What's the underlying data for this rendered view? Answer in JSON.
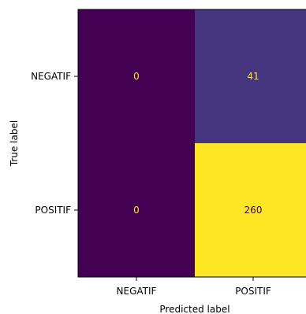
{
  "chart_data": {
    "type": "heatmap",
    "title": "",
    "xlabel": "Predicted label",
    "ylabel": "True label",
    "x_categories": [
      "NEGATIF",
      "POSITIF"
    ],
    "y_categories": [
      "NEGATIF",
      "POSITIF"
    ],
    "values": [
      [
        0,
        41
      ],
      [
        0,
        260
      ]
    ],
    "value_range": [
      0,
      260
    ],
    "colormap": "viridis",
    "colors": {
      "low": "#440154",
      "mid": "#3b528b",
      "high": "#fde725",
      "label_on_dark": "#fde725",
      "label_on_light": "#440154"
    },
    "grid": false,
    "legend": "none"
  }
}
